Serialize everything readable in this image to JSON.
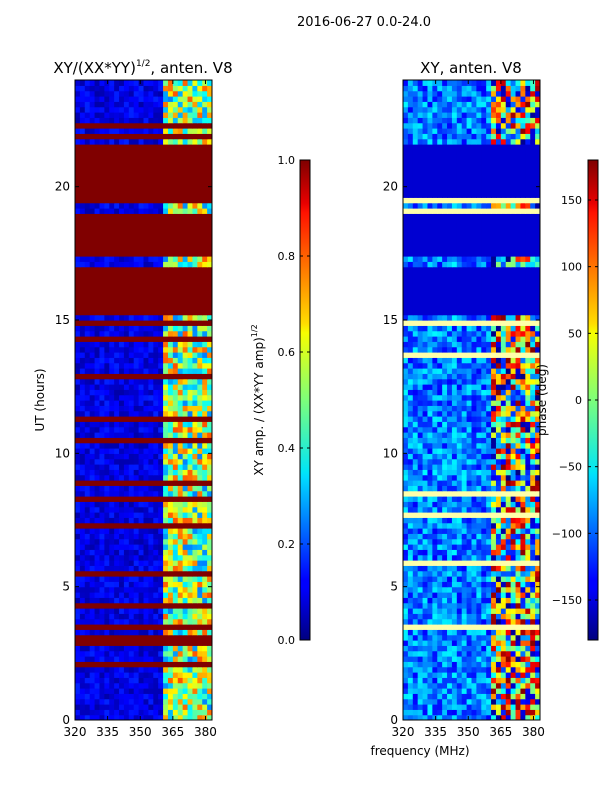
{
  "suptitle": "2016-06-27 0.0-24.0",
  "shared_xlabel": "frequency (MHz)",
  "colors": {
    "masked": "#800000",
    "background": "#ffffff"
  },
  "chart_data": [
    {
      "type": "heatmap",
      "title": "XY/(XX*YY)",
      "title_superscript": "1/2",
      "title_suffix": ", anten. V8",
      "xlabel": "",
      "ylabel": "UT (hours)",
      "xlim": [
        320,
        383
      ],
      "ylim": [
        0,
        24
      ],
      "xticks": [
        320,
        335,
        350,
        365,
        380
      ],
      "yticks": [
        0,
        5,
        10,
        15,
        20
      ],
      "colormap": "jet",
      "colorbar": {
        "label": "XY amp. / (XX*YY amp)",
        "label_superscript": "1/2",
        "range": [
          0.0,
          1.0
        ],
        "ticks": [
          "0.0",
          "0.2",
          "0.4",
          "0.6",
          "0.8",
          "1.0"
        ]
      },
      "masked_bands_hours": [
        [
          15.2,
          17.0
        ],
        [
          17.4,
          19.1
        ],
        [
          19.7,
          21.6
        ]
      ],
      "active_band_mhz": [
        361,
        383
      ]
    },
    {
      "type": "heatmap",
      "title": "XY, anten. V8",
      "xlabel": "frequency (MHz)",
      "ylabel": "",
      "xlim": [
        320,
        383
      ],
      "ylim": [
        0,
        24
      ],
      "xticks": [
        320,
        335,
        350,
        365,
        380
      ],
      "yticks": [
        0,
        5,
        10,
        15,
        20
      ],
      "colormap": "jet",
      "colorbar": {
        "label": "phase (deg)",
        "range": [
          -180,
          180
        ],
        "ticks": [
          "150",
          "100",
          "50",
          "0",
          "−50",
          "−100",
          "−150"
        ]
      },
      "flagged_bands_hours": [
        [
          15.2,
          17.0
        ],
        [
          17.4,
          19.1
        ],
        [
          19.7,
          21.6
        ]
      ],
      "active_band_mhz": [
        361,
        383
      ]
    }
  ]
}
